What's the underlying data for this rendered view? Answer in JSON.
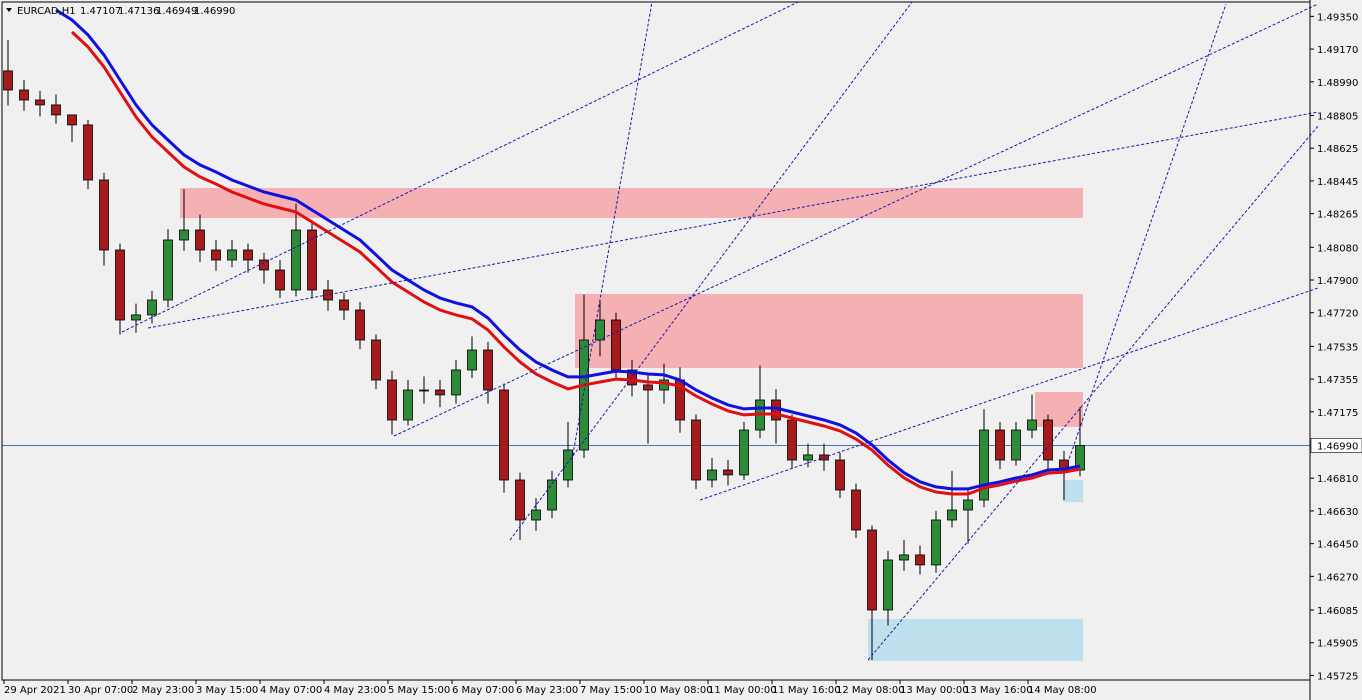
{
  "chart_data": {
    "type": "candlestick",
    "symbol": "EURCAD,H1",
    "header_ohlc": [
      "1.47107",
      "1.47136",
      "1.46949",
      "1.46990"
    ],
    "ylim": [
      1.457,
      1.4944
    ],
    "yticks": [
      {
        "value": 1.4935,
        "label": "1.49350"
      },
      {
        "value": 1.4917,
        "label": "1.49170"
      },
      {
        "value": 1.4899,
        "label": "1.48990"
      },
      {
        "value": 1.48805,
        "label": "1.48805"
      },
      {
        "value": 1.48625,
        "label": "1.48625"
      },
      {
        "value": 1.48445,
        "label": "1.48445"
      },
      {
        "value": 1.48265,
        "label": "1.48265"
      },
      {
        "value": 1.4808,
        "label": "1.48080"
      },
      {
        "value": 1.479,
        "label": "1.47900"
      },
      {
        "value": 1.4772,
        "label": "1.47720"
      },
      {
        "value": 1.47535,
        "label": "1.47535"
      },
      {
        "value": 1.47355,
        "label": "1.47355"
      },
      {
        "value": 1.47175,
        "label": "1.47175"
      },
      {
        "value": 1.4681,
        "label": "1.46810"
      },
      {
        "value": 1.4663,
        "label": "1.46630"
      },
      {
        "value": 1.4645,
        "label": "1.46450"
      },
      {
        "value": 1.4627,
        "label": "1.46270"
      },
      {
        "value": 1.46085,
        "label": "1.46085"
      },
      {
        "value": 1.45905,
        "label": "1.45905"
      },
      {
        "value": 1.45725,
        "label": "1.45725"
      }
    ],
    "current_price": {
      "value": 1.4699,
      "label": "1.46990"
    },
    "time_labels": [
      "29 Apr 2021",
      "30 Apr 07:00",
      "2 May 23:00",
      "3 May 15:00",
      "4 May 07:00",
      "4 May 23:00",
      "5 May 15:00",
      "6 May 07:00",
      "6 May 23:00",
      "7 May 15:00",
      "10 May 08:00",
      "11 May 00:00",
      "11 May 16:00",
      "12 May 08:00",
      "13 May 00:00",
      "13 May 16:00",
      "14 May 08:00"
    ],
    "bull_color": "#2f8a3a",
    "bear_color": "#a51c1c",
    "open": [
      1.4905,
      1.48945,
      1.4889,
      1.48863,
      1.48808,
      1.48753,
      1.4845,
      1.48065,
      1.4768,
      1.47708,
      1.4779,
      1.4812,
      1.48175,
      1.48065,
      1.4801,
      1.48065,
      1.4801,
      1.47955,
      1.47845,
      1.48175,
      1.47845,
      1.4779,
      1.47735,
      1.4757,
      1.4735,
      1.4713,
      1.47295,
      1.47295,
      1.47268,
      1.47405,
      1.47515,
      1.47295,
      1.468,
      1.4658,
      1.46635,
      1.468,
      1.46965,
      1.4757,
      1.4768,
      1.47405,
      1.47323,
      1.47295,
      1.4735,
      1.4713,
      1.468,
      1.46855,
      1.46828,
      1.47075,
      1.4724,
      1.4713,
      1.4691,
      1.46938,
      1.4691,
      1.46745,
      1.46525,
      1.46085,
      1.4636,
      1.46388,
      1.46333,
      1.4658,
      1.46635,
      1.4669,
      1.47075,
      1.4691,
      1.47075,
      1.4713,
      1.4691,
      1.46855
    ],
    "high": [
      1.4922,
      1.49,
      1.4894,
      1.4892,
      1.488,
      1.4878,
      1.4849,
      1.481,
      1.4777,
      1.4784,
      1.4818,
      1.484,
      1.4826,
      1.4812,
      1.4812,
      1.481,
      1.4805,
      1.4801,
      1.4832,
      1.4822,
      1.479,
      1.4783,
      1.4778,
      1.476,
      1.474,
      1.4735,
      1.4737,
      1.4735,
      1.4746,
      1.4759,
      1.4756,
      1.4733,
      1.4684,
      1.467,
      1.4685,
      1.4712,
      1.4782,
      1.4779,
      1.4772,
      1.4746,
      1.4738,
      1.4744,
      1.4742,
      1.4716,
      1.4692,
      1.4691,
      1.4712,
      1.4743,
      1.473,
      1.4716,
      1.47,
      1.47,
      1.4695,
      1.4678,
      1.4655,
      1.4641,
      1.4647,
      1.4644,
      1.4663,
      1.4685,
      1.4675,
      1.4719,
      1.4712,
      1.4712,
      1.4727,
      1.4716,
      1.4696,
      1.472
    ],
    "low": [
      1.4886,
      1.4883,
      1.488,
      1.4876,
      1.4866,
      1.484,
      1.4798,
      1.476,
      1.4761,
      1.4766,
      1.4775,
      1.4806,
      1.48,
      1.4795,
      1.4797,
      1.4794,
      1.4788,
      1.478,
      1.4781,
      1.478,
      1.4773,
      1.4768,
      1.4752,
      1.473,
      1.4705,
      1.471,
      1.4722,
      1.472,
      1.4722,
      1.4736,
      1.4722,
      1.4673,
      1.4647,
      1.4652,
      1.4659,
      1.4676,
      1.4692,
      1.4748,
      1.4736,
      1.4726,
      1.47,
      1.4722,
      1.4706,
      1.4675,
      1.4676,
      1.4677,
      1.468,
      1.4703,
      1.47,
      1.4686,
      1.4687,
      1.4685,
      1.467,
      1.4648,
      1.4581,
      1.46,
      1.463,
      1.4628,
      1.4629,
      1.4654,
      1.4645,
      1.4665,
      1.4686,
      1.4688,
      1.4703,
      1.4686,
      1.4669,
      1.4682
    ],
    "close": [
      1.48945,
      1.4889,
      1.48863,
      1.48808,
      1.48753,
      1.4845,
      1.48065,
      1.4768,
      1.47708,
      1.4779,
      1.4812,
      1.48175,
      1.48065,
      1.4801,
      1.48065,
      1.4801,
      1.47955,
      1.47845,
      1.48175,
      1.47845,
      1.4779,
      1.47735,
      1.4757,
      1.4735,
      1.4713,
      1.47295,
      1.47295,
      1.47268,
      1.47405,
      1.47515,
      1.47295,
      1.468,
      1.4658,
      1.46635,
      1.468,
      1.46965,
      1.4757,
      1.4768,
      1.47405,
      1.47323,
      1.47295,
      1.4735,
      1.4713,
      1.468,
      1.46855,
      1.46828,
      1.47075,
      1.4724,
      1.4713,
      1.4691,
      1.46938,
      1.4691,
      1.46745,
      1.46525,
      1.46085,
      1.4636,
      1.46388,
      1.46333,
      1.4658,
      1.46635,
      1.4669,
      1.47075,
      1.4691,
      1.47075,
      1.4713,
      1.4691,
      1.46855,
      1.4699
    ],
    "series": [
      {
        "color": "#1010e0",
        "values": [
          null,
          null,
          null,
          1.49385,
          1.4933,
          1.49248,
          1.49138,
          1.49,
          1.48863,
          1.48753,
          1.4867,
          1.48588,
          1.48533,
          1.48494,
          1.4845,
          1.48417,
          1.48384,
          1.48362,
          1.4834,
          1.48285,
          1.4823,
          1.48175,
          1.4812,
          1.48038,
          1.47955,
          1.479,
          1.47845,
          1.47801,
          1.47774,
          1.47752,
          1.47691,
          1.47598,
          1.47515,
          1.47449,
          1.47405,
          1.47367,
          1.47367,
          1.47383,
          1.47399,
          1.47394,
          1.47383,
          1.47378,
          1.4735,
          1.47295,
          1.47251,
          1.47213,
          1.47191,
          1.47196,
          1.47196,
          1.47174,
          1.47152,
          1.4713,
          1.47103,
          1.47058,
          1.46993,
          1.4691,
          1.4684,
          1.4679,
          1.46762,
          1.46751,
          1.46751,
          1.46773,
          1.4679,
          1.46811,
          1.46828,
          1.46855,
          1.4686,
          1.46877
        ]
      },
      {
        "color": "#e01010",
        "values": [
          null,
          null,
          null,
          null,
          1.49264,
          1.49182,
          1.49072,
          1.48934,
          1.48797,
          1.48687,
          1.48604,
          1.48522,
          1.48467,
          1.48428,
          1.48384,
          1.48351,
          1.48318,
          1.48296,
          1.48274,
          1.48219,
          1.48164,
          1.48109,
          1.48054,
          1.47972,
          1.47889,
          1.47834,
          1.47779,
          1.47735,
          1.47708,
          1.47686,
          1.47625,
          1.47532,
          1.47449,
          1.47383,
          1.47339,
          1.47301,
          1.47323,
          1.47339,
          1.47355,
          1.4735,
          1.47339,
          1.47334,
          1.47317,
          1.47262,
          1.47218,
          1.4718,
          1.47158,
          1.47163,
          1.47163,
          1.47141,
          1.47119,
          1.47097,
          1.4707,
          1.47025,
          1.46965,
          1.46882,
          1.46812,
          1.46762,
          1.46734,
          1.46723,
          1.46723,
          1.46756,
          1.46773,
          1.46794,
          1.46811,
          1.46838,
          1.46843,
          1.4686
        ]
      }
    ],
    "zones": [
      {
        "color": "#f4b0b3",
        "top": 1.48406,
        "bottom": 1.48241
      },
      {
        "color": "#f4b0b3",
        "top": 1.47823,
        "bottom": 1.47416
      },
      {
        "color": "#f4b0b3",
        "top": 1.47284,
        "bottom": 1.47092
      },
      {
        "color": "#bde0ec",
        "top": 1.468,
        "bottom": 1.46679
      },
      {
        "color": "#bde0ec",
        "top": 1.46036,
        "bottom": 1.45805
      }
    ]
  }
}
